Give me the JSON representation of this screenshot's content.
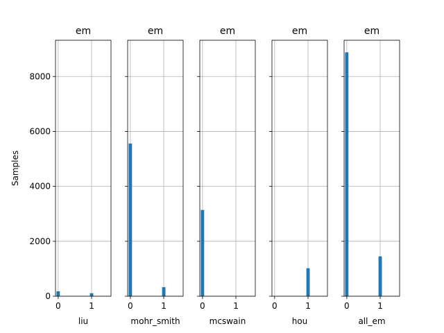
{
  "chart_data": [
    {
      "type": "bar",
      "title": "em",
      "xlabel": "liu",
      "ylabel": "Samples",
      "xlim": [
        -0.08,
        1.58
      ],
      "ylim": [
        0,
        9320
      ],
      "x_ticks": [
        0,
        1
      ],
      "y_ticks": [
        0,
        2000,
        4000,
        6000,
        8000
      ],
      "grid": true,
      "bars": [
        {
          "x": 0,
          "value": 180
        },
        {
          "x": 1,
          "value": 110
        }
      ]
    },
    {
      "type": "bar",
      "title": "em",
      "xlabel": "mohr_smith",
      "ylabel": "",
      "xlim": [
        -0.08,
        1.58
      ],
      "ylim": [
        0,
        9320
      ],
      "x_ticks": [
        0,
        1
      ],
      "y_ticks": [
        0,
        2000,
        4000,
        6000,
        8000
      ],
      "grid": true,
      "bars": [
        {
          "x": 0,
          "value": 5560
        },
        {
          "x": 1,
          "value": 330
        }
      ]
    },
    {
      "type": "bar",
      "title": "em",
      "xlabel": "mcswain",
      "ylabel": "",
      "xlim": [
        -0.08,
        1.58
      ],
      "ylim": [
        0,
        9320
      ],
      "x_ticks": [
        0,
        1
      ],
      "y_ticks": [
        0,
        2000,
        4000,
        6000,
        8000
      ],
      "grid": true,
      "bars": [
        {
          "x": 0,
          "value": 3140
        }
      ]
    },
    {
      "type": "bar",
      "title": "em",
      "xlabel": "hou",
      "ylabel": "",
      "xlim": [
        -0.08,
        1.58
      ],
      "ylim": [
        0,
        9320
      ],
      "x_ticks": [
        0,
        1
      ],
      "y_ticks": [
        0,
        2000,
        4000,
        6000,
        8000
      ],
      "grid": true,
      "bars": [
        {
          "x": 1,
          "value": 1020
        }
      ]
    },
    {
      "type": "bar",
      "title": "em",
      "xlabel": "all_em",
      "ylabel": "",
      "xlim": [
        -0.08,
        1.58
      ],
      "ylim": [
        0,
        9320
      ],
      "x_ticks": [
        0,
        1
      ],
      "y_ticks": [
        0,
        2000,
        4000,
        6000,
        8000
      ],
      "grid": true,
      "bars": [
        {
          "x": 0,
          "value": 8880
        },
        {
          "x": 1,
          "value": 1450
        }
      ]
    }
  ],
  "style": {
    "bar_color": "#1f77b4",
    "grid_color": "#b0b0b0",
    "axis_color": "#000000"
  }
}
